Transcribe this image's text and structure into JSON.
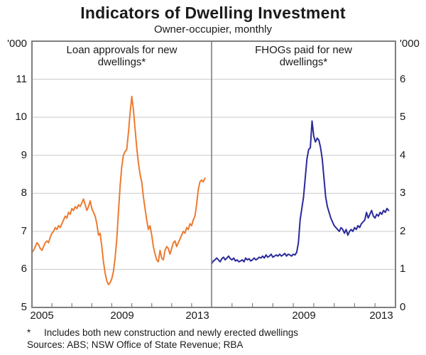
{
  "header": {
    "title": "Indicators of Dwelling Investment",
    "subtitle": "Owner-occupier, monthly"
  },
  "footnotes": {
    "marker": "*",
    "note": "Includes both new construction and newly erected dwellings",
    "sources": "Sources: ABS; NSW Office of State Revenue; RBA"
  },
  "chart_data": {
    "type": "line",
    "title": "Indicators of Dwelling Investment",
    "subtitle": "Owner-occupier, monthly",
    "frequency": "monthly",
    "grid": "horizontal",
    "panels": [
      {
        "title": "Loan approvals for new dwellings*",
        "unit_label": "'000",
        "axis_side": "left",
        "ylim": [
          5,
          12
        ],
        "yticks": [
          5,
          6,
          7,
          8,
          9,
          10,
          11
        ],
        "xlim": [
          2004.5,
          2013.5
        ],
        "xtick_marks": [
          2005.5,
          2006.5,
          2007.5,
          2008.5,
          2009.5,
          2010.5,
          2011.5,
          2012.5
        ],
        "x_labels": [
          2005,
          2009,
          2013
        ],
        "series": {
          "name": "Loan approvals for new dwellings",
          "color": "#ED7B30",
          "start_year": 2004,
          "start_month": 7,
          "monthly_values": [
            6.45,
            6.5,
            6.6,
            6.7,
            6.65,
            6.55,
            6.5,
            6.6,
            6.7,
            6.75,
            6.7,
            6.85,
            6.95,
            7.0,
            7.1,
            7.05,
            7.15,
            7.1,
            7.2,
            7.3,
            7.4,
            7.35,
            7.5,
            7.45,
            7.6,
            7.55,
            7.65,
            7.6,
            7.7,
            7.65,
            7.75,
            7.85,
            7.7,
            7.55,
            7.65,
            7.8,
            7.6,
            7.5,
            7.4,
            7.2,
            6.9,
            6.95,
            6.6,
            6.2,
            5.9,
            5.7,
            5.6,
            5.65,
            5.75,
            5.95,
            6.3,
            6.8,
            7.5,
            8.2,
            8.7,
            9.0,
            9.1,
            9.15,
            9.6,
            10.1,
            10.55,
            10.2,
            9.7,
            9.2,
            8.8,
            8.5,
            8.3,
            7.9,
            7.6,
            7.3,
            7.05,
            7.15,
            6.9,
            6.6,
            6.4,
            6.25,
            6.2,
            6.5,
            6.3,
            6.25,
            6.5,
            6.6,
            6.55,
            6.4,
            6.55,
            6.7,
            6.75,
            6.6,
            6.7,
            6.8,
            6.9,
            7.0,
            6.95,
            7.1,
            7.05,
            7.2,
            7.15,
            7.3,
            7.4,
            7.7,
            8.1,
            8.3,
            8.35,
            8.3,
            8.4
          ]
        }
      },
      {
        "title": "FHOGs paid for new dwellings*",
        "unit_label": "'000",
        "axis_side": "right",
        "ylim": [
          0,
          7
        ],
        "yticks": [
          0,
          1,
          2,
          3,
          4,
          5,
          6
        ],
        "xlim": [
          2004.5,
          2013.5
        ],
        "xtick_marks": [
          2005.5,
          2006.5,
          2007.5,
          2008.5,
          2009.5,
          2010.5,
          2011.5,
          2012.5
        ],
        "x_labels": [
          2009,
          2013
        ],
        "series": {
          "name": "FHOGs paid for new dwellings",
          "color": "#2A2A9B",
          "start_year": 2004,
          "start_month": 7,
          "monthly_values": [
            1.15,
            1.22,
            1.25,
            1.3,
            1.25,
            1.2,
            1.28,
            1.32,
            1.25,
            1.3,
            1.35,
            1.28,
            1.25,
            1.3,
            1.22,
            1.25,
            1.2,
            1.22,
            1.25,
            1.2,
            1.3,
            1.25,
            1.28,
            1.22,
            1.25,
            1.3,
            1.25,
            1.28,
            1.32,
            1.3,
            1.35,
            1.3,
            1.38,
            1.32,
            1.35,
            1.4,
            1.32,
            1.35,
            1.38,
            1.35,
            1.4,
            1.35,
            1.38,
            1.42,
            1.35,
            1.4,
            1.38,
            1.35,
            1.4,
            1.38,
            1.45,
            1.7,
            2.3,
            2.6,
            2.9,
            3.4,
            3.9,
            4.15,
            4.2,
            4.9,
            4.5,
            4.35,
            4.45,
            4.4,
            4.2,
            3.9,
            3.4,
            2.9,
            2.65,
            2.5,
            2.35,
            2.25,
            2.15,
            2.1,
            2.05,
            2.0,
            2.1,
            2.05,
            1.95,
            2.05,
            1.9,
            2.0,
            2.05,
            2.0,
            2.1,
            2.05,
            2.15,
            2.1,
            2.2,
            2.25,
            2.3,
            2.5,
            2.35,
            2.45,
            2.55,
            2.4,
            2.35,
            2.45,
            2.4,
            2.5,
            2.45,
            2.55,
            2.5,
            2.6,
            2.55
          ]
        }
      }
    ]
  }
}
